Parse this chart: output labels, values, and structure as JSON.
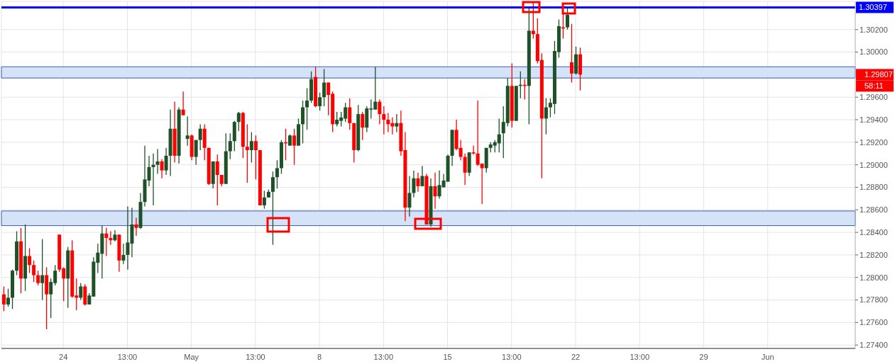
{
  "chart_data": {
    "type": "candlestick",
    "categories": [
      null,
      null,
      null,
      null,
      null,
      null,
      null,
      null,
      null,
      null,
      null,
      null,
      null,
      null,
      "24",
      null,
      null,
      null,
      null,
      null,
      null,
      null,
      null,
      null,
      null,
      null,
      null,
      null,
      null,
      "13:00",
      null,
      null,
      null,
      null,
      null,
      null,
      null,
      null,
      null,
      null,
      null,
      null,
      null,
      null,
      "May",
      null,
      null,
      null,
      null,
      null,
      null,
      null,
      null,
      null,
      null,
      null,
      null,
      null,
      null,
      "13:00",
      null,
      null,
      null,
      null,
      null,
      null,
      null,
      null,
      null,
      null,
      null,
      null,
      null,
      null,
      "8",
      null,
      null,
      null,
      null,
      null,
      null,
      null,
      null,
      null,
      null,
      null,
      null,
      null,
      null,
      "13:00",
      null,
      null,
      null,
      null,
      null,
      null,
      null,
      null,
      null,
      null,
      null,
      null,
      null,
      null,
      "15",
      null,
      null,
      null,
      null,
      null,
      null,
      null,
      null,
      null,
      null,
      null,
      null,
      null,
      null,
      "13:00",
      null,
      null,
      null,
      null,
      null,
      null,
      null,
      null,
      null,
      null,
      null,
      null,
      null,
      null,
      "22",
      null,
      null,
      null,
      null,
      null,
      null,
      null,
      null,
      null,
      null,
      null,
      null,
      null,
      null,
      "13:00",
      null,
      null,
      null,
      null,
      null,
      null,
      null,
      null,
      null,
      null,
      null,
      null,
      null,
      null,
      "29",
      null,
      null,
      null,
      null,
      null,
      null,
      null,
      null,
      null,
      null,
      null,
      null,
      null,
      null,
      "Jun",
      null,
      null,
      null,
      null,
      null,
      null,
      null,
      null,
      null,
      null,
      null,
      null,
      null,
      null,
      null,
      null,
      null,
      null,
      null,
      null
    ],
    "ohlc": [
      [
        1.2785,
        1.2792,
        1.277,
        1.2776
      ],
      [
        1.2776,
        1.279,
        1.2774,
        1.2782
      ],
      [
        1.2782,
        1.2807,
        1.2772,
        1.2806
      ],
      [
        1.2806,
        1.2841,
        1.2802,
        1.2832
      ],
      [
        1.2832,
        1.2844,
        1.2786,
        1.2799
      ],
      [
        1.2799,
        1.2847,
        1.2788,
        1.2819
      ],
      [
        1.2819,
        1.2826,
        1.2804,
        1.2811
      ],
      [
        1.2811,
        1.2815,
        1.2796,
        1.2802
      ],
      [
        1.2802,
        1.2806,
        1.2793,
        1.2795
      ],
      [
        1.2795,
        1.2834,
        1.278,
        1.2802
      ],
      [
        1.2802,
        1.2809,
        1.2754,
        1.2785
      ],
      [
        1.2785,
        1.2799,
        1.2764,
        1.2796
      ],
      [
        1.2795,
        1.2811,
        1.2793,
        1.2806
      ],
      [
        1.2838,
        1.2838,
        1.2805,
        1.2807
      ],
      [
        1.2808,
        1.2809,
        1.2779,
        1.2799
      ],
      [
        1.2799,
        1.2827,
        1.2773,
        1.2824
      ],
      [
        1.2824,
        1.2833,
        1.2782,
        1.2783
      ],
      [
        1.2784,
        1.2799,
        1.2771,
        1.2782
      ],
      [
        1.2782,
        1.2795,
        1.278,
        1.2792
      ],
      [
        1.2792,
        1.2794,
        1.2775,
        1.2776
      ],
      [
        1.2776,
        1.2786,
        1.2776,
        1.2784
      ],
      [
        1.2783,
        1.2818,
        1.2783,
        1.2814
      ],
      [
        1.2813,
        1.283,
        1.2804,
        1.2822
      ],
      [
        1.2821,
        1.2846,
        1.2799,
        1.2839
      ],
      [
        1.2839,
        1.2844,
        1.2819,
        1.2835
      ],
      [
        1.2835,
        1.2841,
        1.2829,
        1.2833
      ],
      [
        1.2833,
        1.2842,
        1.2832,
        1.2838
      ],
      [
        1.2838,
        1.2838,
        1.2805,
        1.2815
      ],
      [
        1.2815,
        1.283,
        1.2812,
        1.282
      ],
      [
        1.282,
        1.2863,
        1.2807,
        1.2831
      ],
      [
        1.283,
        1.2862,
        1.2818,
        1.2847
      ],
      [
        1.2847,
        1.2853,
        1.2837,
        1.2844
      ],
      [
        1.2844,
        1.2875,
        1.2843,
        1.2867
      ],
      [
        1.2867,
        1.2917,
        1.2863,
        1.2887
      ],
      [
        1.2886,
        1.2908,
        1.2881,
        1.2898
      ],
      [
        1.2898,
        1.291,
        1.2864,
        1.29
      ],
      [
        1.29,
        1.2914,
        1.2892,
        1.2903
      ],
      [
        1.2903,
        1.2905,
        1.2888,
        1.2895
      ],
      [
        1.2895,
        1.2915,
        1.2891,
        1.2908
      ],
      [
        1.2908,
        1.2949,
        1.289,
        1.2932
      ],
      [
        1.2932,
        1.2956,
        1.2902,
        1.2908
      ],
      [
        1.2908,
        1.2951,
        1.2901,
        1.2949
      ],
      [
        1.2949,
        1.2965,
        1.2944,
        1.2944
      ],
      [
        1.2923,
        1.2943,
        1.2917,
        1.2926
      ],
      [
        1.2926,
        1.2927,
        1.2904,
        1.2907
      ],
      [
        1.2907,
        1.2922,
        1.29,
        1.2922
      ],
      [
        1.2922,
        1.2936,
        1.2913,
        1.2932
      ],
      [
        1.2932,
        1.2936,
        1.2904,
        1.2915
      ],
      [
        1.2915,
        1.2915,
        1.2882,
        1.2883
      ],
      [
        1.2883,
        1.2903,
        1.2879,
        1.2903
      ],
      [
        1.2903,
        1.2909,
        1.2864,
        1.2891
      ],
      [
        1.2891,
        1.2891,
        1.2881,
        1.2883
      ],
      [
        1.2883,
        1.2928,
        1.2883,
        1.2912
      ],
      [
        1.2912,
        1.2928,
        1.2905,
        1.2921
      ],
      [
        1.2921,
        1.2939,
        1.2912,
        1.2938
      ],
      [
        1.2938,
        1.2947,
        1.293,
        1.2946
      ],
      [
        1.2946,
        1.2947,
        1.2906,
        1.2916
      ],
      [
        1.2916,
        1.2936,
        1.2884,
        1.2913
      ],
      [
        1.2913,
        1.2929,
        1.2902,
        1.2921
      ],
      [
        1.2921,
        1.2926,
        1.2887,
        1.2913
      ],
      [
        1.2913,
        1.2913,
        1.2864,
        1.2864
      ],
      [
        1.2864,
        1.2877,
        1.2861,
        1.2871
      ],
      [
        1.2871,
        1.2878,
        1.2871,
        1.2876
      ],
      [
        1.2876,
        1.2894,
        1.2829,
        1.2889
      ],
      [
        1.2889,
        1.2904,
        1.2879,
        1.2897
      ],
      [
        1.2897,
        1.2922,
        1.2892,
        1.292
      ],
      [
        1.292,
        1.2932,
        1.2904,
        1.2919
      ],
      [
        1.2917,
        1.2927,
        1.2917,
        1.2926
      ],
      [
        1.2926,
        1.2932,
        1.29,
        1.2917
      ],
      [
        1.2917,
        1.2941,
        1.2917,
        1.2936
      ],
      [
        1.2936,
        1.2957,
        1.2919,
        1.2951
      ],
      [
        1.2951,
        1.2968,
        1.2931,
        1.2957
      ],
      [
        1.2957,
        1.2983,
        1.2955,
        1.2976
      ],
      [
        1.2978,
        1.2987,
        1.2951,
        1.2952
      ],
      [
        1.2952,
        1.2964,
        1.2948,
        1.296
      ],
      [
        1.296,
        1.2985,
        1.2952,
        1.2973
      ],
      [
        1.2973,
        1.2973,
        1.2944,
        1.2962
      ],
      [
        1.2963,
        1.2965,
        1.2929,
        1.2936
      ],
      [
        1.2936,
        1.2947,
        1.2934,
        1.294
      ],
      [
        1.2939,
        1.2947,
        1.2934,
        1.2942
      ],
      [
        1.2941,
        1.2955,
        1.2938,
        1.2951
      ],
      [
        1.2951,
        1.2959,
        1.2931,
        1.2937
      ],
      [
        1.2937,
        1.2937,
        1.2902,
        1.2913
      ],
      [
        1.2913,
        1.2953,
        1.2912,
        1.2945
      ],
      [
        1.2945,
        1.2947,
        1.2922,
        1.2933
      ],
      [
        1.2933,
        1.2952,
        1.2929,
        1.295
      ],
      [
        1.2949,
        1.2958,
        1.2941,
        1.295
      ],
      [
        1.2949,
        1.2987,
        1.2949,
        1.2956
      ],
      [
        1.2956,
        1.2958,
        1.2936,
        1.2945
      ],
      [
        1.2945,
        1.2952,
        1.2927,
        1.294
      ],
      [
        1.294,
        1.2946,
        1.2929,
        1.2936
      ],
      [
        1.2937,
        1.2942,
        1.2927,
        1.2934
      ],
      [
        1.2934,
        1.2945,
        1.2929,
        1.2937
      ],
      [
        1.2937,
        1.2948,
        1.2908,
        1.2912
      ],
      [
        1.2913,
        1.2929,
        1.285,
        1.2862
      ],
      [
        1.2862,
        1.289,
        1.2854,
        1.2875
      ],
      [
        1.2875,
        1.2895,
        1.2871,
        1.2888
      ],
      [
        1.2888,
        1.2893,
        1.2876,
        1.2881
      ],
      [
        1.2881,
        1.2899,
        1.2881,
        1.289
      ],
      [
        1.289,
        1.2892,
        1.2847,
        1.2847
      ],
      [
        1.2847,
        1.2888,
        1.2845,
        1.2881
      ],
      [
        1.2881,
        1.2893,
        1.2861,
        1.2872
      ],
      [
        1.2872,
        1.2895,
        1.287,
        1.2882
      ],
      [
        1.288,
        1.2892,
        1.288,
        1.2886
      ],
      [
        1.2885,
        1.2909,
        1.2885,
        1.2908
      ],
      [
        1.2908,
        1.2931,
        1.2899,
        1.2931
      ],
      [
        1.2931,
        1.294,
        1.2913,
        1.2914
      ],
      [
        1.2915,
        1.2922,
        1.2904,
        1.2907
      ],
      [
        1.2907,
        1.291,
        1.2882,
        1.2893
      ],
      [
        1.2893,
        1.2911,
        1.289,
        1.2911
      ],
      [
        1.2911,
        1.2917,
        1.2909,
        1.291
      ],
      [
        1.291,
        1.2957,
        1.2899,
        1.29
      ],
      [
        1.2901,
        1.2901,
        1.2865,
        1.2897
      ],
      [
        1.2897,
        1.2915,
        1.2893,
        1.2915
      ],
      [
        1.2915,
        1.292,
        1.2911,
        1.2918
      ],
      [
        1.2917,
        1.2922,
        1.2911,
        1.292
      ],
      [
        1.2919,
        1.2941,
        1.2911,
        1.2927
      ],
      [
        1.2928,
        1.2952,
        1.2906,
        1.2938
      ],
      [
        1.2937,
        1.2977,
        1.2934,
        1.297
      ],
      [
        1.297,
        1.299,
        1.2933,
        1.2939
      ],
      [
        1.2939,
        1.297,
        1.2939,
        1.297
      ],
      [
        1.297,
        1.2983,
        1.2959,
        1.2971
      ],
      [
        1.2971,
        1.2976,
        1.2958,
        1.297
      ],
      [
        1.297,
        1.304,
        1.2936,
        1.3019
      ],
      [
        1.3019,
        1.3044,
        1.3012,
        1.3016
      ],
      [
        1.3016,
        1.303,
        1.299,
        1.2992
      ],
      [
        1.2993,
        1.2999,
        1.2888,
        1.2941
      ],
      [
        1.2941,
        1.2959,
        1.2927,
        1.2951
      ],
      [
        1.2951,
        1.2959,
        1.2942,
        1.2955
      ],
      [
        1.2954,
        1.301,
        1.2945,
        1.3001
      ],
      [
        1.3,
        1.3029,
        1.2995,
        1.3023
      ],
      [
        1.3022,
        1.3034,
        1.3012,
        1.3021
      ],
      [
        1.3022,
        1.3039,
        1.302,
        1.3033
      ],
      [
        1.2991,
        1.3025,
        1.2973,
        1.2981
      ],
      [
        1.2981,
        1.3005,
        1.298,
        1.2998
      ],
      [
        1.2998,
        1.3004,
        1.2966,
        1.298
      ],
      null,
      null,
      null,
      null,
      null,
      null,
      null,
      null,
      null,
      null,
      null,
      null,
      null,
      null,
      null,
      null,
      null,
      null,
      null,
      null,
      null,
      null,
      null,
      null,
      null,
      null,
      null,
      null,
      null,
      null,
      null,
      null,
      null,
      null,
      null,
      null,
      null,
      null,
      null,
      null,
      null,
      null,
      null,
      null,
      null,
      null,
      null,
      null,
      null,
      null,
      null,
      null,
      null,
      null,
      null,
      null,
      null,
      null,
      null,
      null,
      null,
      null,
      null,
      null
    ],
    "colors": [
      "#ff0000",
      "#1e5128",
      "#1e5128",
      "#1e5128",
      "#ff0000",
      "#1e5128",
      "#ff0000",
      "#ff0000",
      "#ff0000",
      "#1e5128",
      "#ff0000",
      "#1e5128",
      "#1e5128",
      "#ff0000",
      "#ff0000",
      "#1e5128",
      "#ff0000",
      "#ff0000",
      "#1e5128",
      "#ff0000",
      "#1e5128",
      "#1e5128",
      "#1e5128",
      "#1e5128",
      "#ff0000",
      "#ff0000",
      "#1e5128",
      "#ff0000",
      "#1e5128",
      "#1e5128",
      "#1e5128",
      "#ff0000",
      "#1e5128",
      "#1e5128",
      "#1e5128",
      "#1e5128",
      "#1e5128",
      "#ff0000",
      "#1e5128",
      "#1e5128",
      "#ff0000",
      "#1e5128",
      "#ff0000",
      "#1e5128",
      "#ff0000",
      "#1e5128",
      "#1e5128",
      "#ff0000",
      "#ff0000",
      "#1e5128",
      "#ff0000",
      "#ff0000",
      "#1e5128",
      "#1e5128",
      "#1e5128",
      "#1e5128",
      "#ff0000",
      "#ff0000",
      "#1e5128",
      "#ff0000",
      "#ff0000",
      "#1e5128",
      "#1e5128",
      "#1e5128",
      "#1e5128",
      "#1e5128",
      "#ff0000",
      "#1e5128",
      "#ff0000",
      "#1e5128",
      "#1e5128",
      "#1e5128",
      "#1e5128",
      "#ff0000",
      "#1e5128",
      "#1e5128",
      "#ff0000",
      "#ff0000",
      "#1e5128",
      "#1e5128",
      "#1e5128",
      "#ff0000",
      "#ff0000",
      "#1e5128",
      "#ff0000",
      "#1e5128",
      "#1e5128",
      "#1e5128",
      "#ff0000",
      "#ff0000",
      "#ff0000",
      "#ff0000",
      "#1e5128",
      "#ff0000",
      "#ff0000",
      "#1e5128",
      "#1e5128",
      "#ff0000",
      "#1e5128",
      "#ff0000",
      "#1e5128",
      "#ff0000",
      "#1e5128",
      "#1e5128",
      "#1e5128",
      "#1e5128",
      "#ff0000",
      "#ff0000",
      "#ff0000",
      "#1e5128",
      "#ff0000",
      "#ff0000",
      "#ff0000",
      "#1e5128",
      "#1e5128",
      "#1e5128",
      "#1e5128",
      "#1e5128",
      "#1e5128",
      "#ff0000",
      "#1e5128",
      "#1e5128",
      "#ff0000",
      "#1e5128",
      "#ff0000",
      "#ff0000",
      "#ff0000",
      "#1e5128",
      "#1e5128",
      "#1e5128",
      "#1e5128",
      "#ff0000",
      "#1e5128",
      "#ff0000",
      "#1e5128",
      "#ff0000",
      null,
      null,
      null,
      null,
      null,
      null,
      null,
      null,
      null,
      null,
      null,
      null,
      null,
      null,
      null,
      null,
      null,
      null,
      null,
      null,
      null,
      null,
      null,
      null,
      null,
      null,
      null,
      null,
      null,
      null,
      null,
      null,
      null,
      null,
      null,
      null,
      null,
      null,
      null,
      null,
      null,
      null,
      null,
      null,
      null,
      null,
      null,
      null,
      null,
      null,
      null,
      null,
      null,
      null,
      null,
      null,
      null,
      null,
      null,
      null,
      null,
      null,
      null,
      null
    ],
    "ylim": [
      1.2737,
      1.3045
    ],
    "yticks": [
      {
        "value": 1.274,
        "label": "1.27400"
      },
      {
        "value": 1.276,
        "label": "1.27600"
      },
      {
        "value": 1.278,
        "label": "1.27800"
      },
      {
        "value": 1.28,
        "label": "1.28000"
      },
      {
        "value": 1.282,
        "label": "1.28200"
      },
      {
        "value": 1.284,
        "label": "1.28400"
      },
      {
        "value": 1.286,
        "label": "1.28600"
      },
      {
        "value": 1.288,
        "label": "1.28800"
      },
      {
        "value": 1.29,
        "label": "1.29000"
      },
      {
        "value": 1.292,
        "label": "1.29200"
      },
      {
        "value": 1.294,
        "label": "1.29400"
      },
      {
        "value": 1.296,
        "label": "1.29600"
      },
      {
        "value": 1.3,
        "label": "1.30000"
      },
      {
        "value": 1.302,
        "label": "1.30200"
      }
    ],
    "grid": true,
    "ref_lines": [
      {
        "axis": "y",
        "value": 1.30397,
        "label": "1.30397",
        "color": "#0000ff"
      }
    ],
    "bands": [
      {
        "axis": "y",
        "from": 1.2977,
        "to": 1.2987,
        "color": "#cfe0f7"
      },
      {
        "axis": "y",
        "from": 1.2846,
        "to": 1.2859,
        "color": "#cfe0f7"
      }
    ],
    "annotations": [
      "1.29807",
      "58:11"
    ]
  }
}
